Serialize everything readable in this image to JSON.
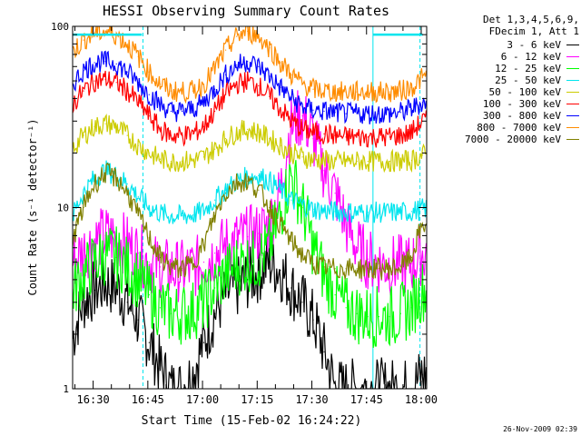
{
  "chart_data": {
    "type": "line",
    "title": "HESSI Observing Summary Count Rates",
    "xlabel": "Start Time (15-Feb-02 16:24:22)",
    "ylabel": "Count Rate (s⁻¹ detector⁻¹)",
    "yscale": "log",
    "ylim": [
      1,
      100
    ],
    "xlim": [
      "16:24:22",
      "18:01:30"
    ],
    "x_ticks": [
      "16:30",
      "16:45",
      "17:00",
      "17:15",
      "17:30",
      "17:45",
      "18:00"
    ],
    "y_tick_labels": [
      "1",
      "10",
      "100"
    ],
    "legend_header": [
      "Det 1,3,4,5,6,9,",
      "FDecim 1, Att 1"
    ],
    "timestamp": "26-Nov-2009 02:39",
    "vertical_markers_min": [
      19.3,
      82.4,
      95.3
    ],
    "saturation_segments": [
      {
        "color": "#00e5ee",
        "from_min": 0,
        "to_min": 19,
        "y": 90
      },
      {
        "color": "#00e5ee",
        "from_min": 82.4,
        "to_min": 96,
        "y": 90
      }
    ],
    "series": [
      {
        "name": "3 - 6 keV",
        "color": "#000000",
        "x": [
          0,
          3,
          6,
          9,
          12,
          15,
          18,
          21,
          24,
          27,
          30,
          33,
          36,
          39,
          42,
          45,
          48,
          51,
          54,
          57,
          60,
          63,
          66,
          69,
          72,
          75,
          78,
          81,
          84,
          87,
          90,
          93,
          96
        ],
        "y": [
          1.9,
          3.0,
          3.5,
          3.8,
          3.6,
          3.0,
          2.4,
          1.8,
          1.3,
          1.0,
          1.0,
          1.2,
          1.8,
          2.6,
          3.3,
          3.6,
          4.0,
          4.4,
          5.0,
          4.5,
          3.6,
          3.0,
          2.4,
          1.6,
          1.0,
          1.0,
          1.0,
          1.0,
          1.0,
          1.0,
          1.0,
          1.0,
          1.2
        ]
      },
      {
        "name": "6 - 12 keV",
        "color": "#ff00ff",
        "x": [
          0,
          3,
          6,
          9,
          12,
          15,
          18,
          21,
          24,
          27,
          30,
          33,
          36,
          39,
          42,
          45,
          48,
          51,
          54,
          57,
          60,
          63,
          66,
          69,
          72,
          75,
          78,
          81,
          84,
          87,
          90,
          93,
          96
        ],
        "y": [
          5.0,
          5.8,
          6.5,
          7.0,
          6.8,
          6.2,
          5.6,
          5.0,
          4.7,
          4.5,
          4.5,
          4.6,
          5.0,
          5.6,
          6.2,
          6.6,
          6.9,
          7.2,
          8.0,
          12,
          28,
          32,
          24,
          16,
          12,
          8,
          6,
          5.2,
          4.9,
          4.8,
          4.8,
          4.9,
          5.6
        ]
      },
      {
        "name": "12 - 25 keV",
        "color": "#00ff00",
        "x": [
          0,
          3,
          6,
          9,
          12,
          15,
          18,
          21,
          24,
          27,
          30,
          33,
          36,
          39,
          42,
          45,
          48,
          51,
          54,
          57,
          60,
          63,
          66,
          69,
          72,
          75,
          78,
          81,
          84,
          87,
          90,
          93,
          96
        ],
        "y": [
          3.5,
          4.2,
          5.0,
          5.5,
          5.3,
          4.7,
          4.0,
          3.3,
          2.8,
          2.6,
          2.6,
          2.7,
          3.0,
          3.6,
          4.3,
          4.8,
          5.0,
          5.2,
          6.0,
          9.0,
          15,
          10,
          6.0,
          4.2,
          3.3,
          2.8,
          2.6,
          2.5,
          2.5,
          2.5,
          2.6,
          2.8,
          3.5
        ]
      },
      {
        "name": "25 - 50 keV",
        "color": "#00e5ee",
        "x": [
          0,
          3,
          6,
          9,
          12,
          15,
          18,
          21,
          24,
          27,
          30,
          33,
          36,
          39,
          42,
          45,
          48,
          51,
          54,
          57,
          60,
          63,
          66,
          69,
          72,
          75,
          78,
          81,
          84,
          87,
          90,
          93,
          96
        ],
        "y": [
          9.0,
          12,
          14.5,
          16,
          15,
          13.5,
          11.5,
          10,
          9.3,
          9.0,
          9.0,
          9.1,
          9.6,
          11,
          12.5,
          14,
          14.8,
          15,
          14,
          12.5,
          11,
          10.3,
          9.8,
          9.6,
          9.5,
          9.4,
          9.4,
          9.4,
          9.4,
          9.4,
          9.4,
          9.5,
          9.8
        ]
      },
      {
        "name": "50 - 100 keV",
        "color": "#cccc00",
        "x": [
          0,
          3,
          6,
          9,
          12,
          15,
          18,
          21,
          24,
          27,
          30,
          33,
          36,
          39,
          42,
          45,
          48,
          51,
          54,
          57,
          60,
          63,
          66,
          69,
          72,
          75,
          78,
          81,
          84,
          87,
          90,
          93,
          96
        ],
        "y": [
          21,
          25,
          28,
          29,
          28,
          25,
          22,
          20,
          18.5,
          18,
          18,
          18.2,
          19,
          21,
          24,
          26,
          27,
          26,
          24,
          22,
          20,
          19,
          18.5,
          18.2,
          18,
          18,
          18,
          18,
          18,
          18,
          18,
          18.2,
          19.5
        ]
      },
      {
        "name": "100 - 300 keV",
        "color": "#ff0000",
        "x": [
          0,
          3,
          6,
          9,
          12,
          15,
          18,
          21,
          24,
          27,
          30,
          33,
          36,
          39,
          42,
          45,
          48,
          51,
          54,
          57,
          60,
          63,
          66,
          69,
          72,
          75,
          78,
          81,
          84,
          87,
          90,
          93,
          96
        ],
        "y": [
          37,
          44,
          50,
          51,
          49,
          44,
          38,
          32,
          27,
          25,
          25,
          25.5,
          28,
          34,
          42,
          48,
          50,
          47,
          41,
          35,
          30,
          27,
          26,
          25.5,
          25,
          24.5,
          24.5,
          24.5,
          24.5,
          24.5,
          25,
          26,
          30
        ]
      },
      {
        "name": "300 - 800 keV",
        "color": "#0000ff",
        "x": [
          0,
          3,
          6,
          9,
          12,
          15,
          18,
          21,
          24,
          27,
          30,
          33,
          36,
          39,
          42,
          45,
          48,
          51,
          54,
          57,
          60,
          63,
          66,
          69,
          72,
          75,
          78,
          81,
          84,
          87,
          90,
          93,
          96
        ],
        "y": [
          48,
          57,
          63,
          64,
          62,
          56,
          49,
          42,
          37,
          34,
          34,
          35,
          38,
          45,
          54,
          61,
          64,
          60,
          53,
          46,
          40,
          36,
          34.5,
          34,
          33.5,
          33,
          33,
          33,
          33,
          33,
          33.5,
          35,
          38
        ]
      },
      {
        "name": "800 - 7000 keV",
        "color": "#ff8c00",
        "x": [
          0,
          3,
          6,
          9,
          12,
          15,
          18,
          21,
          24,
          27,
          30,
          33,
          36,
          39,
          42,
          45,
          48,
          51,
          54,
          57,
          60,
          63,
          66,
          69,
          72,
          75,
          78,
          81,
          84,
          87,
          90,
          93,
          96
        ],
        "y": [
          72,
          84,
          92,
          94,
          90,
          80,
          68,
          56,
          48,
          44,
          43.5,
          44,
          48,
          58,
          74,
          88,
          94,
          88,
          76,
          63,
          54,
          48,
          45,
          44,
          43.5,
          43.5,
          43.5,
          43.5,
          43.5,
          43.5,
          44,
          46,
          52
        ]
      },
      {
        "name": "7000 - 20000 keV",
        "color": "#808000",
        "x": [
          0,
          3,
          6,
          9,
          12,
          15,
          18,
          21,
          24,
          27,
          30,
          33,
          36,
          39,
          42,
          45,
          48,
          51,
          54,
          57,
          60,
          63,
          66,
          69,
          72,
          75,
          78,
          81,
          84,
          87,
          90,
          93,
          96
        ],
        "y": [
          6.5,
          10,
          13.5,
          15.5,
          14.5,
          12,
          9,
          6.8,
          5.3,
          4.7,
          4.6,
          4.9,
          6.2,
          9,
          12,
          13.8,
          14,
          12.5,
          10,
          8,
          6.5,
          5.5,
          4.9,
          4.7,
          4.6,
          4.6,
          4.6,
          4.6,
          4.6,
          4.6,
          4.7,
          5.3,
          8
        ]
      }
    ]
  }
}
